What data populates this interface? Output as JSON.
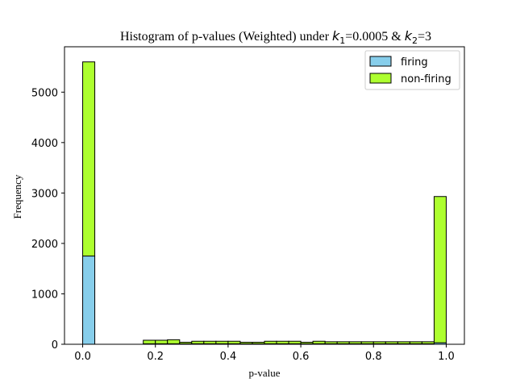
{
  "chart_data": {
    "type": "bar",
    "stacked": true,
    "title": {
      "prefix": "Histogram of p-values (Weighted) under ",
      "k1_var": "k",
      "k1_sub": "1",
      "k1_value": "=0.0005 & ",
      "k2_var": "k",
      "k2_sub": "2",
      "k2_value": "=3"
    },
    "xlabel": "p-value",
    "ylabel": "Frequency",
    "xlim": [
      -0.05,
      1.05
    ],
    "ylim": [
      0,
      5900
    ],
    "xticks": [
      0.0,
      0.2,
      0.4,
      0.6,
      0.8,
      1.0
    ],
    "xtick_labels": [
      "0.0",
      "0.2",
      "0.4",
      "0.6",
      "0.8",
      "1.0"
    ],
    "yticks": [
      0,
      1000,
      2000,
      3000,
      4000,
      5000
    ],
    "ytick_labels": [
      "0",
      "1000",
      "2000",
      "3000",
      "4000",
      "5000"
    ],
    "bin_edges": [
      0.0,
      0.0333,
      0.0667,
      0.1,
      0.1333,
      0.1667,
      0.2,
      0.2333,
      0.2667,
      0.3,
      0.3333,
      0.3667,
      0.4,
      0.4333,
      0.4667,
      0.5,
      0.5333,
      0.5667,
      0.6,
      0.6333,
      0.6667,
      0.7,
      0.7333,
      0.7667,
      0.8,
      0.8333,
      0.8667,
      0.9,
      0.9333,
      0.9667,
      1.0
    ],
    "series": [
      {
        "name": "firing",
        "color": "#87ceeb",
        "values": [
          1750,
          0,
          0,
          0,
          0,
          10,
          10,
          10,
          10,
          10,
          10,
          10,
          10,
          10,
          10,
          10,
          10,
          10,
          10,
          10,
          10,
          10,
          10,
          10,
          10,
          10,
          10,
          10,
          10,
          30
        ]
      },
      {
        "name": "non-firing",
        "color": "#adff2f",
        "values": [
          3850,
          0,
          0,
          0,
          0,
          70,
          70,
          80,
          30,
          50,
          50,
          50,
          50,
          30,
          30,
          50,
          50,
          50,
          30,
          50,
          40,
          40,
          40,
          40,
          40,
          40,
          40,
          40,
          40,
          2900
        ]
      }
    ],
    "legend": {
      "position": "top-right",
      "entries": [
        "firing",
        "non-firing"
      ]
    }
  }
}
